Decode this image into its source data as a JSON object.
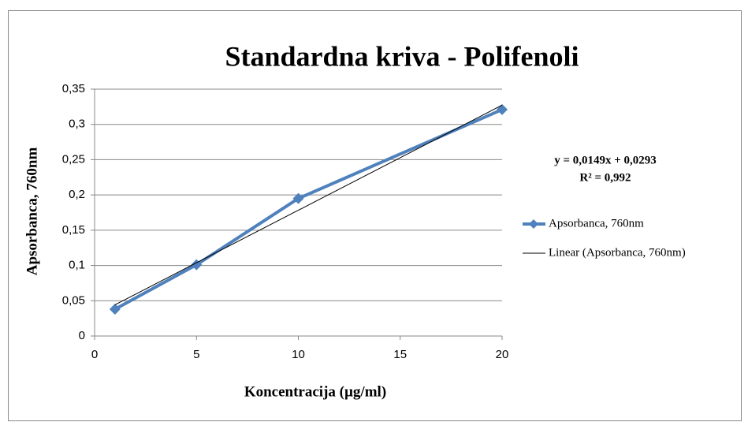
{
  "chart_data": {
    "type": "line",
    "title": "Standardna kriva - Polifenoli",
    "xlabel": "Koncentracija (µg/ml)",
    "ylabel": "Apsorbanca, 760nm",
    "x": [
      1,
      5,
      10,
      20
    ],
    "series": [
      {
        "name": "Apsorbanca, 760nm",
        "color": "#4f81bd",
        "values": [
          0.038,
          0.101,
          0.195,
          0.321
        ]
      }
    ],
    "trendline": {
      "name": "Linear (Apsorbanca, 760nm)",
      "color": "#000000",
      "slope": 0.0149,
      "intercept": 0.0293,
      "equation": "y = 0,0149x + 0,0293",
      "r2": "R² = 0,992"
    },
    "xlim": [
      0,
      20
    ],
    "xticks": [
      0,
      5,
      10,
      15,
      20
    ],
    "ylim": [
      0,
      0.35
    ],
    "yticks": [
      0,
      {
        "value": 0.05,
        "label": "0,05"
      },
      {
        "value": 0.1,
        "label": "0,1"
      },
      {
        "value": 0.15,
        "label": "0,15"
      },
      {
        "value": 0.2,
        "label": "0,2"
      },
      {
        "value": 0.25,
        "label": "0,25"
      },
      {
        "value": 0.3,
        "label": "0,3"
      },
      {
        "value": 0.35,
        "label": "0,35"
      }
    ],
    "grid": true,
    "legend": "right"
  }
}
